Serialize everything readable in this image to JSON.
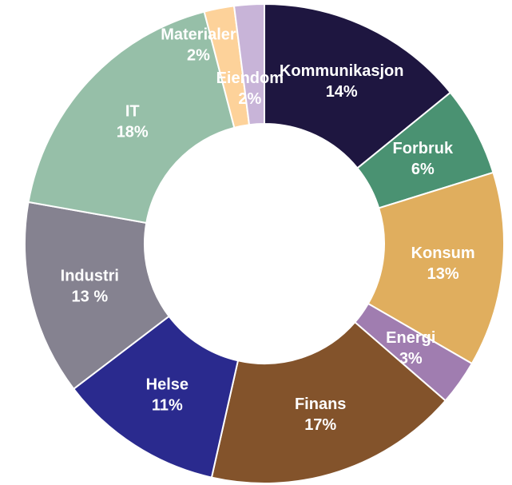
{
  "chart_data": {
    "type": "donut",
    "categories": [
      "Kommunikasjon",
      "Forbruk",
      "Konsum",
      "Energi",
      "Finans",
      "Helse",
      "Industri",
      "IT",
      "Materialer",
      "Eiendom"
    ],
    "values": [
      14,
      6,
      13,
      3,
      17,
      11,
      13,
      18,
      2,
      2
    ],
    "value_labels": [
      "14%",
      "6%",
      "13%",
      "3%",
      "17%",
      "11%",
      "13 %",
      "18%",
      "2%",
      "2%"
    ],
    "colors": [
      "#1e1640",
      "#4a9272",
      "#e0ae5e",
      "#a07db0",
      "#83532b",
      "#2a2a8e",
      "#858290",
      "#96bfa8",
      "#fdd29a",
      "#c8b4d8"
    ]
  }
}
